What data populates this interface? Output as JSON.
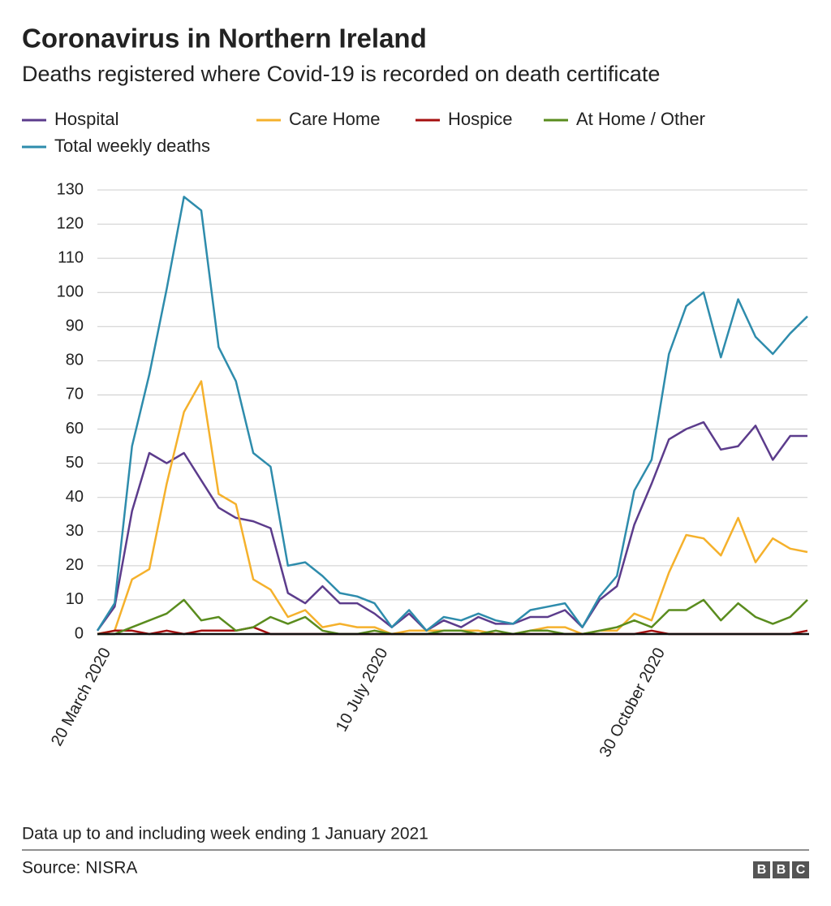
{
  "chart_data": {
    "type": "line",
    "title": "Coronavirus in Northern Ireland",
    "subtitle": "Deaths registered where Covid-19 is recorded on death certificate",
    "categories": [
      "20 March 2020",
      null,
      null,
      null,
      null,
      null,
      null,
      null,
      null,
      null,
      null,
      null,
      null,
      null,
      null,
      null,
      "10 July 2020",
      null,
      null,
      null,
      null,
      null,
      null,
      null,
      null,
      null,
      null,
      null,
      null,
      null,
      null,
      null,
      "30 October 2020",
      null,
      null,
      null,
      null,
      null,
      null,
      null,
      null,
      null
    ],
    "series": [
      {
        "name": "Hospital",
        "color": "#5c3c8c",
        "values": [
          1,
          8,
          36,
          53,
          50,
          53,
          45,
          37,
          34,
          33,
          31,
          12,
          9,
          14,
          9,
          9,
          6,
          2,
          6,
          1,
          4,
          2,
          5,
          3,
          3,
          5,
          5,
          7,
          2,
          10,
          14,
          32,
          44,
          57,
          60,
          62,
          54,
          55,
          61,
          51,
          58,
          58
        ]
      },
      {
        "name": "Care Home",
        "color": "#f5b12c",
        "values": [
          0,
          1,
          16,
          19,
          44,
          65,
          74,
          41,
          38,
          16,
          13,
          5,
          7,
          2,
          3,
          2,
          2,
          0,
          1,
          1,
          1,
          1,
          1,
          0,
          0,
          1,
          2,
          2,
          0,
          1,
          1,
          6,
          4,
          18,
          29,
          28,
          23,
          34,
          21,
          28,
          25,
          24
        ]
      },
      {
        "name": "Hospice",
        "color": "#a50f0f",
        "values": [
          0,
          1,
          1,
          0,
          1,
          0,
          1,
          1,
          1,
          2,
          0,
          0,
          0,
          0,
          0,
          0,
          0,
          0,
          0,
          0,
          0,
          0,
          0,
          0,
          0,
          0,
          0,
          0,
          0,
          0,
          0,
          0,
          1,
          0,
          0,
          0,
          0,
          0,
          0,
          0,
          0,
          1
        ]
      },
      {
        "name": "At Home / Other",
        "color": "#5a8c1e",
        "values": [
          0,
          0,
          2,
          4,
          6,
          10,
          4,
          5,
          1,
          2,
          5,
          3,
          5,
          1,
          0,
          0,
          1,
          0,
          0,
          0,
          1,
          1,
          0,
          1,
          0,
          1,
          1,
          0,
          0,
          1,
          2,
          4,
          2,
          7,
          7,
          10,
          4,
          9,
          5,
          3,
          5,
          10
        ]
      },
      {
        "name": "Total weekly deaths",
        "color": "#2e8cac",
        "values": [
          1,
          9,
          55,
          76,
          101,
          128,
          124,
          84,
          74,
          53,
          49,
          20,
          21,
          17,
          12,
          11,
          9,
          2,
          7,
          1,
          5,
          4,
          6,
          4,
          3,
          7,
          8,
          9,
          2,
          11,
          17,
          42,
          51,
          82,
          96,
          100,
          81,
          98,
          87,
          82,
          88,
          93
        ]
      }
    ],
    "ylim": [
      0,
      130
    ],
    "yticks": [
      0,
      10,
      20,
      30,
      40,
      50,
      60,
      70,
      80,
      90,
      100,
      110,
      120,
      130
    ],
    "grid": true,
    "note": "Data up to and including week ending 1 January 2021",
    "source": "Source: NISRA",
    "logo": "BBC"
  }
}
